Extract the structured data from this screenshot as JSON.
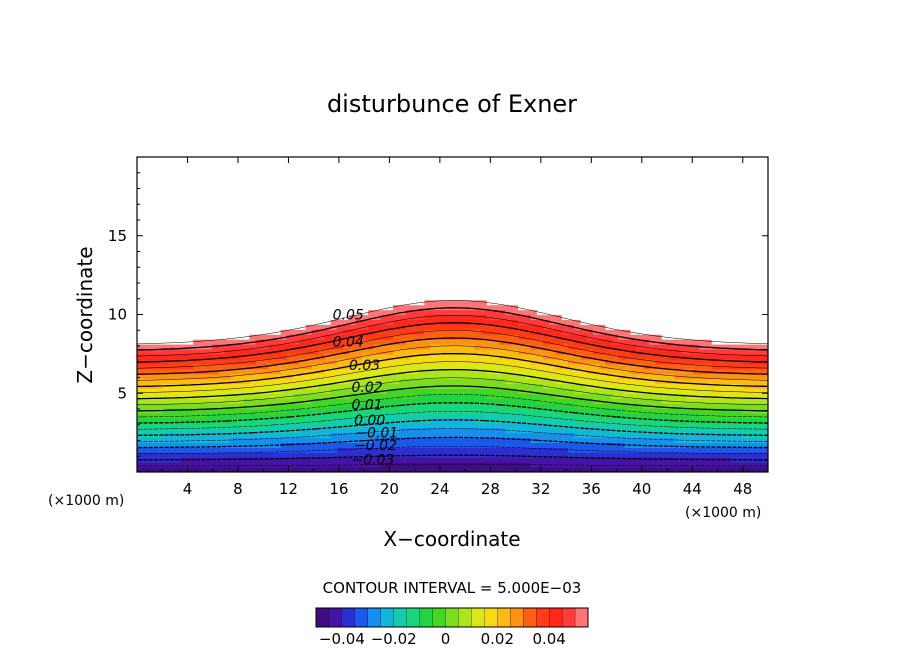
{
  "chart_data": {
    "type": "contour",
    "title": "disturbunce of Exner",
    "xlabel": "X−coordinate",
    "ylabel": "Z−coordinate",
    "x_unit": "(×1000 m)",
    "y_unit": "(×1000 m)",
    "xlim": [
      0,
      50
    ],
    "ylim": [
      0,
      20
    ],
    "x_ticks": [
      "4",
      "8",
      "12",
      "16",
      "20",
      "24",
      "28",
      "32",
      "36",
      "40",
      "44",
      "48"
    ],
    "y_ticks": [
      "5",
      "10",
      "15"
    ],
    "contour_interval_text": "CONTOUR INTERVAL = 5.000E−03",
    "contour_labels": [
      {
        "text": "0.05",
        "x": 15.5,
        "z": 10.0
      },
      {
        "text": "0.04",
        "x": 15.5,
        "z": 8.3
      },
      {
        "text": "0.03",
        "x": 16.8,
        "z": 6.8
      },
      {
        "text": "0.02",
        "x": 17.0,
        "z": 5.4
      },
      {
        "text": "0.01",
        "x": 17.0,
        "z": 4.3
      },
      {
        "text": "0.00",
        "x": 17.2,
        "z": 3.3
      },
      {
        "text": "−0.01",
        "x": 17.3,
        "z": 2.5
      },
      {
        "text": "−0.02",
        "x": 17.2,
        "z": 1.7
      },
      {
        "text": "−0.03",
        "x": 17.0,
        "z": 0.8
      }
    ],
    "colorbar": {
      "min": -0.05,
      "max": 0.055,
      "ticks": [
        "−0.04",
        "−0.02",
        "0",
        "0.02",
        "0.04"
      ]
    },
    "white_region_above": 0.055,
    "grid": false,
    "colors": {
      "low": "#2a0a6a",
      "mid": "#19d219",
      "high": "#ff1e1e",
      "top": "#ff9a9a"
    }
  }
}
